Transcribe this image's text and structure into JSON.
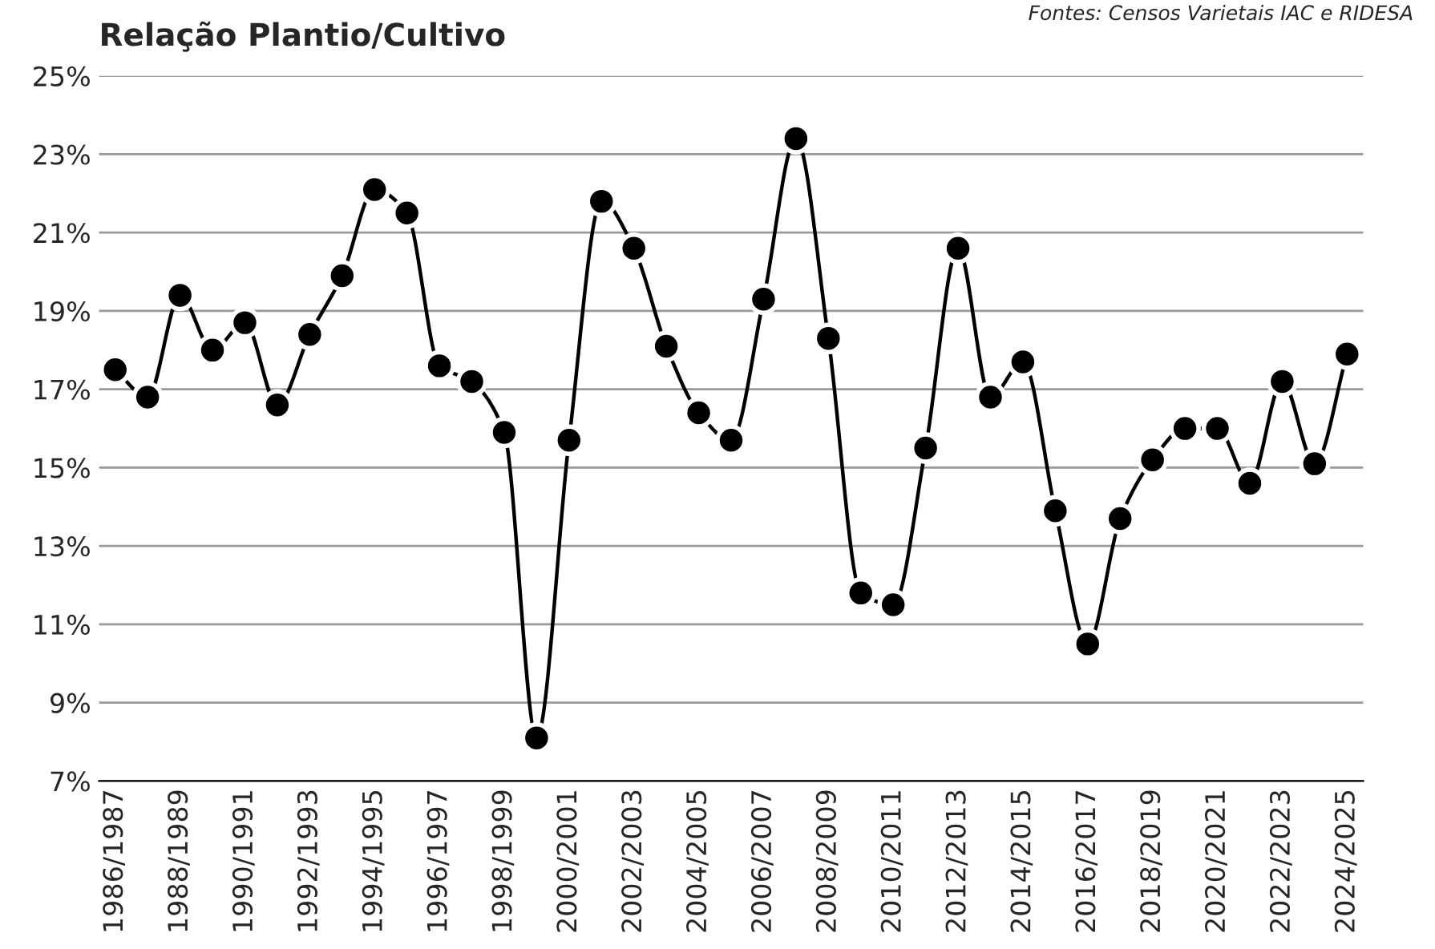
{
  "chart_data": {
    "type": "line",
    "title": "Relação Plantio/Cultivo",
    "annotations": [
      "Fontes: Censos Varietais IAC e RIDESA"
    ],
    "categories": [
      "1986/1987",
      null,
      "1988/1989",
      null,
      "1990/1991",
      null,
      "1992/1993",
      null,
      "1994/1995",
      null,
      "1996/1997",
      null,
      "1998/1999",
      null,
      "2000/2001",
      null,
      "2002/2003",
      null,
      "2004/2005",
      null,
      "2006/2007",
      null,
      "2008/2009",
      null,
      "2010/2011",
      null,
      "2012/2013",
      null,
      "2014/2015",
      null,
      "2016/2017",
      null,
      "2018/2019",
      null,
      "2020/2021",
      null,
      "2022/2023",
      null,
      "2024/2025"
    ],
    "series": [
      {
        "color": "#000000",
        "values": [
          17.5,
          16.8,
          19.4,
          18.0,
          18.7,
          16.6,
          18.4,
          19.9,
          22.1,
          21.5,
          17.6,
          17.2,
          15.9,
          8.1,
          15.7,
          21.8,
          20.6,
          18.1,
          16.4,
          15.7,
          19.3,
          23.4,
          18.3,
          11.8,
          11.5,
          15.5,
          20.6,
          16.8,
          17.7,
          13.9,
          10.5,
          13.7,
          15.2,
          16.0,
          16.0,
          14.6,
          17.2,
          15.1,
          17.9
        ]
      }
    ],
    "ylim": [
      7,
      25
    ],
    "yticks": [
      {
        "value": 7,
        "label": "7%"
      },
      {
        "value": 9,
        "label": "9%"
      },
      {
        "value": 11,
        "label": "11%"
      },
      {
        "value": 13,
        "label": "13%"
      },
      {
        "value": 15,
        "label": "15%"
      },
      {
        "value": 17,
        "label": "17%"
      },
      {
        "value": 19,
        "label": "19%"
      },
      {
        "value": 21,
        "label": "21%"
      },
      {
        "value": 23,
        "label": "23%"
      },
      {
        "value": 25,
        "label": "25%"
      }
    ],
    "grid": "y",
    "marker": "circle",
    "line_style": "solid"
  }
}
